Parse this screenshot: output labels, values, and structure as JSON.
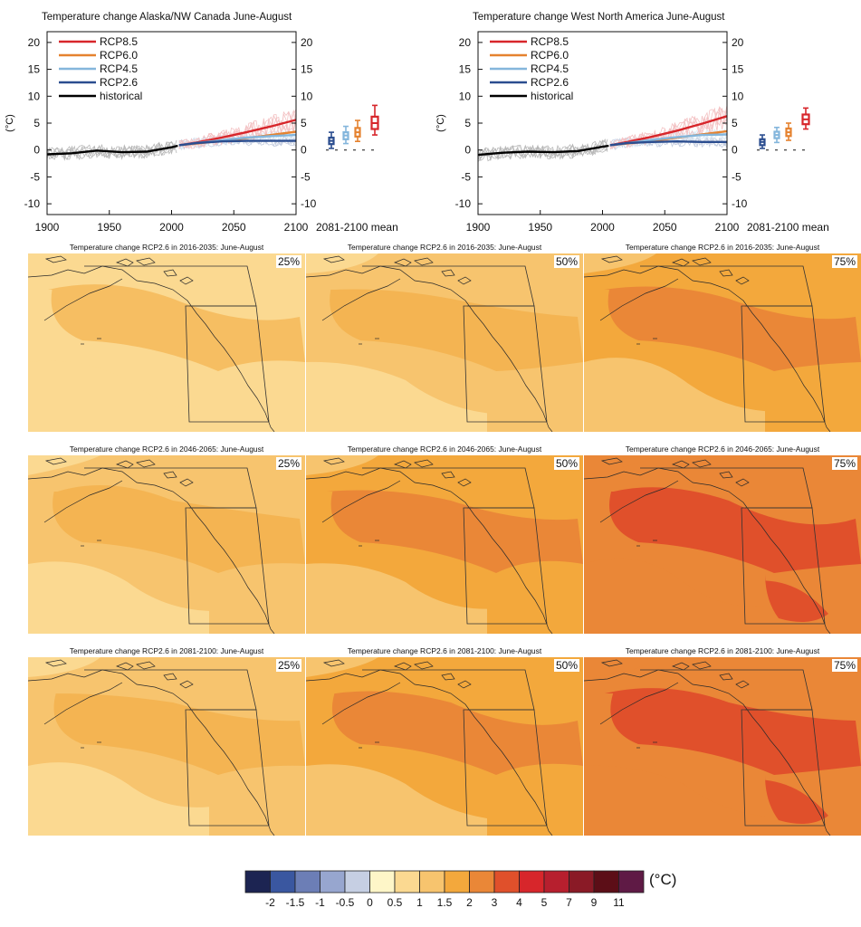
{
  "colors": {
    "rcp85": "#d7262b",
    "rcp60": "#e5822f",
    "rcp45": "#84b6dc",
    "rcp26": "#2b4d8f",
    "historical": "#000000"
  },
  "chart_data": [
    {
      "type": "line",
      "title": "Temperature change Alaska/NW Canada June-August",
      "ylabel": "(°C)",
      "xlim": [
        1900,
        2100
      ],
      "ylim": [
        -12,
        22
      ],
      "x_ticks": [
        "1900",
        "1950",
        "2000",
        "2050",
        "2100"
      ],
      "y_ticks": [
        "20",
        "15",
        "10",
        "5",
        "0",
        "-5",
        "-10"
      ],
      "box_label": "2081-2100 mean",
      "grid": false,
      "legend_position": "top-left",
      "series": [
        {
          "name": "RCP8.5",
          "x": [
            2006,
            2020,
            2040,
            2060,
            2080,
            2100
          ],
          "y": [
            0.9,
            1.4,
            2.3,
            3.3,
            4.4,
            5.6
          ]
        },
        {
          "name": "RCP6.0",
          "x": [
            2006,
            2020,
            2040,
            2060,
            2080,
            2100
          ],
          "y": [
            0.9,
            1.2,
            1.7,
            2.2,
            2.8,
            3.4
          ]
        },
        {
          "name": "RCP4.5",
          "x": [
            2006,
            2020,
            2040,
            2060,
            2080,
            2100
          ],
          "y": [
            0.9,
            1.3,
            1.8,
            2.3,
            2.6,
            2.8
          ]
        },
        {
          "name": "RCP2.6",
          "x": [
            2006,
            2020,
            2040,
            2060,
            2080,
            2100
          ],
          "y": [
            0.9,
            1.3,
            1.6,
            1.7,
            1.7,
            1.7
          ]
        },
        {
          "name": "historical",
          "x": [
            1900,
            1920,
            1940,
            1960,
            1980,
            2000,
            2005
          ],
          "y": [
            -0.8,
            -0.6,
            -0.1,
            -0.4,
            -0.3,
            0.5,
            0.8
          ]
        }
      ],
      "boxes": [
        {
          "series": "RCP2.6",
          "min": 0.3,
          "q1": 1.1,
          "median": 1.7,
          "q3": 2.3,
          "max": 3.3
        },
        {
          "series": "RCP4.5",
          "min": 1.2,
          "q1": 2.0,
          "median": 2.7,
          "q3": 3.3,
          "max": 4.4
        },
        {
          "series": "RCP6.0",
          "min": 1.6,
          "q1": 2.5,
          "median": 3.3,
          "q3": 4.1,
          "max": 5.5
        },
        {
          "series": "RCP8.5",
          "min": 2.8,
          "q1": 3.9,
          "median": 5.0,
          "q3": 6.2,
          "max": 8.3
        }
      ]
    },
    {
      "type": "line",
      "title": "Temperature change West North America June-August",
      "ylabel": "(°C)",
      "xlim": [
        1900,
        2100
      ],
      "ylim": [
        -12,
        22
      ],
      "x_ticks": [
        "1900",
        "1950",
        "2000",
        "2050",
        "2100"
      ],
      "y_ticks": [
        "20",
        "15",
        "10",
        "5",
        "0",
        "-5",
        "-10"
      ],
      "box_label": "2081-2100 mean",
      "grid": false,
      "legend_position": "top-left",
      "series": [
        {
          "name": "RCP8.5",
          "x": [
            2006,
            2020,
            2040,
            2060,
            2080,
            2100
          ],
          "y": [
            0.9,
            1.5,
            2.5,
            3.6,
            4.9,
            6.3
          ]
        },
        {
          "name": "RCP6.0",
          "x": [
            2006,
            2020,
            2040,
            2060,
            2080,
            2100
          ],
          "y": [
            0.9,
            1.2,
            1.7,
            2.3,
            2.9,
            3.5
          ]
        },
        {
          "name": "RCP4.5",
          "x": [
            2006,
            2020,
            2040,
            2060,
            2080,
            2100
          ],
          "y": [
            0.9,
            1.3,
            1.9,
            2.4,
            2.8,
            2.9
          ]
        },
        {
          "name": "RCP2.6",
          "x": [
            2006,
            2020,
            2040,
            2060,
            2080,
            2100
          ],
          "y": [
            0.9,
            1.3,
            1.5,
            1.6,
            1.5,
            1.5
          ]
        },
        {
          "name": "historical",
          "x": [
            1900,
            1920,
            1940,
            1960,
            1980,
            2000,
            2005
          ],
          "y": [
            -0.9,
            -0.5,
            -0.3,
            -0.4,
            -0.2,
            0.6,
            0.8
          ]
        }
      ],
      "boxes": [
        {
          "series": "RCP2.6",
          "min": 0.3,
          "q1": 0.9,
          "median": 1.5,
          "q3": 2.0,
          "max": 2.8
        },
        {
          "series": "RCP4.5",
          "min": 1.4,
          "q1": 2.2,
          "median": 2.8,
          "q3": 3.4,
          "max": 4.2
        },
        {
          "series": "RCP6.0",
          "min": 1.8,
          "q1": 2.6,
          "median": 3.3,
          "q3": 4.0,
          "max": 5.0
        },
        {
          "series": "RCP8.5",
          "min": 3.9,
          "q1": 4.8,
          "median": 5.7,
          "q3": 6.6,
          "max": 7.8
        }
      ]
    },
    {
      "type": "heatmap",
      "legend_unit": "(°C)",
      "legend_position": "bottom",
      "scale_ticks": [
        "-2",
        "-1.5",
        "-1",
        "-0.5",
        "0",
        "0.5",
        "1",
        "1.5",
        "2",
        "3",
        "4",
        "5",
        "7",
        "9",
        "11"
      ],
      "scale_colors": [
        "#1c2452",
        "#3a57a0",
        "#6c7eb6",
        "#97a6cf",
        "#c6cfe3",
        "#fef6c8",
        "#fbd991",
        "#f7c46e",
        "#f3a83c",
        "#ea8737",
        "#e0502b",
        "#d7262b",
        "#b71f2e",
        "#8a1a26",
        "#5c0e17",
        "#5f1a45"
      ],
      "panels": [
        {
          "title": "Temperature change RCP2.6 in 2016-2035: June-August",
          "percentile": "25%",
          "level": 0.9
        },
        {
          "title": "Temperature change RCP2.6 in 2016-2035: June-August",
          "percentile": "50%",
          "level": 1.2
        },
        {
          "title": "Temperature change RCP2.6 in 2016-2035: June-August",
          "percentile": "75%",
          "level": 1.5
        },
        {
          "title": "Temperature change RCP2.6 in 2046-2065: June-August",
          "percentile": "25%",
          "level": 1.1
        },
        {
          "title": "Temperature change RCP2.6 in 2046-2065: June-August",
          "percentile": "50%",
          "level": 1.5
        },
        {
          "title": "Temperature change RCP2.6 in 2046-2065: June-August",
          "percentile": "75%",
          "level": 2.4
        },
        {
          "title": "Temperature change RCP2.6 in 2081-2100: June-August",
          "percentile": "25%",
          "level": 1.1
        },
        {
          "title": "Temperature change RCP2.6 in 2081-2100: June-August",
          "percentile": "50%",
          "level": 1.5
        },
        {
          "title": "Temperature change RCP2.6 in 2081-2100: June-August",
          "percentile": "75%",
          "level": 2.4
        }
      ]
    }
  ]
}
